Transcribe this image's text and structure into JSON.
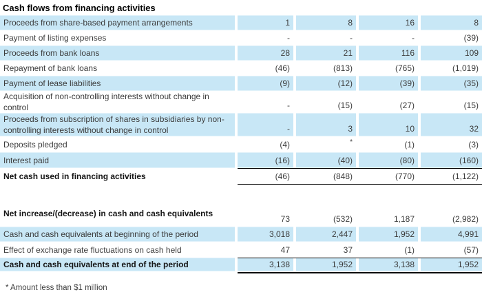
{
  "title": "Cash flows from financing activities",
  "footnote": "* Amount less than $1 million",
  "colors": {
    "row_highlight": "#c8e7f6",
    "rule": "#000000"
  },
  "table": {
    "rows": [
      {
        "label": "Proceeds from share-based payment arrangements",
        "values": [
          "1",
          "8",
          "16",
          "8"
        ],
        "shade": "blue"
      },
      {
        "label": "Payment of listing expenses",
        "values": [
          "-",
          "-",
          "-",
          "(39)"
        ],
        "shade": "white"
      },
      {
        "label": "Proceeds from bank loans",
        "values": [
          "28",
          "21",
          "116",
          "109"
        ],
        "shade": "blue"
      },
      {
        "label": "Repayment of bank loans",
        "values": [
          "(46)",
          "(813)",
          "(765)",
          "(1,019)"
        ],
        "shade": "white"
      },
      {
        "label": "Payment of lease liabilities",
        "values": [
          "(9)",
          "(12)",
          "(39)",
          "(35)"
        ],
        "shade": "blue"
      },
      {
        "label": "Acquisition of non-controlling interests without change in control",
        "values": [
          "-",
          "(15)",
          "(27)",
          "(15)"
        ],
        "shade": "white",
        "tall": true
      },
      {
        "label": "Proceeds from subscription of shares in subsidiaries by non-controlling interests without change in control",
        "values": [
          "-",
          "3",
          "10",
          "32"
        ],
        "shade": "blue",
        "tall": true
      },
      {
        "label": "Deposits pledged",
        "values": [
          "(4)",
          "*",
          "(1)",
          "(3)"
        ],
        "shade": "white"
      },
      {
        "label": "Interest paid",
        "values": [
          "(16)",
          "(40)",
          "(80)",
          "(160)"
        ],
        "shade": "blue"
      },
      {
        "label": "Net cash used in financing activities",
        "values": [
          "(46)",
          "(848)",
          "(770)",
          "(1,122)"
        ],
        "shade": "white",
        "bold": true,
        "rule_top": true,
        "rule_bottom": true
      },
      {
        "type": "spacer"
      },
      {
        "label": "Net increase/(decrease) in cash and cash equivalents",
        "values": [
          "73",
          "(532)",
          "1,187",
          "(2,982)"
        ],
        "shade": "white",
        "bold": true,
        "tall": true
      },
      {
        "label": "Cash and cash equivalents at beginning of the period",
        "values": [
          "3,018",
          "2,447",
          "1,952",
          "4,991"
        ],
        "shade": "blue"
      },
      {
        "label": "Effect of exchange rate fluctuations on cash held",
        "values": [
          "47",
          "37",
          "(1)",
          "(57)"
        ],
        "shade": "white"
      },
      {
        "label": "Cash and cash equivalents at end of the period",
        "values": [
          "3,138",
          "1,952",
          "3,138",
          "1,952"
        ],
        "shade": "blue",
        "bold": true,
        "rule_top": true,
        "rule_bottom_thick": true
      }
    ]
  }
}
